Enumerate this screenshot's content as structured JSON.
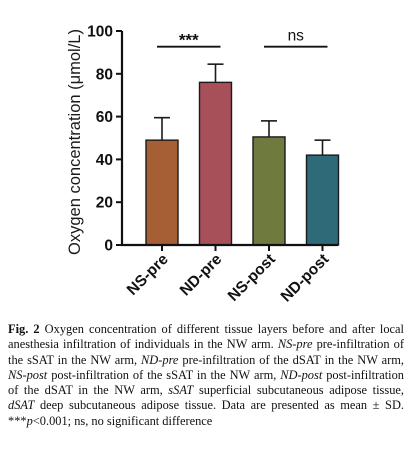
{
  "chart_data": {
    "type": "bar",
    "categories": [
      "NS-pre",
      "ND-pre",
      "NS-post",
      "ND-post"
    ],
    "values": [
      49,
      76,
      50.5,
      42
    ],
    "errors": [
      10.5,
      8.5,
      7.5,
      7
    ],
    "colors": [
      "#a65e35",
      "#a8505a",
      "#6f7b3e",
      "#2e6a78"
    ],
    "xlabel": "",
    "ylabel": "Oxygen concentration (μmol/L)",
    "ylim": [
      0,
      100
    ],
    "yticks": [
      "0",
      "20",
      "40",
      "60",
      "80",
      "100"
    ],
    "grid": false,
    "annotations": [
      {
        "label": "***",
        "from": "NS-pre",
        "to": "ND-pre",
        "y": 95
      },
      {
        "label": "ns",
        "from": "NS-post",
        "to": "ND-post",
        "y": 95
      }
    ]
  },
  "caption": {
    "label": "Fig. 2",
    "parts": [
      {
        "t": " Oxygen concentration of different tissue layers before and after local anesthesia infiltration of individuals in the NW arm. ",
        "i": false
      },
      {
        "t": "NS-pre",
        "i": true
      },
      {
        "t": " pre-infiltration of the sSAT in the NW arm, ",
        "i": false
      },
      {
        "t": "ND-pre",
        "i": true
      },
      {
        "t": " pre-infiltration of the dSAT in the NW arm, ",
        "i": false
      },
      {
        "t": "NS-post",
        "i": true
      },
      {
        "t": " post-infiltration of the sSAT in the NW arm, ",
        "i": false
      },
      {
        "t": "ND-post",
        "i": true
      },
      {
        "t": " post-infiltration of the dSAT in the NW arm, ",
        "i": false
      },
      {
        "t": "sSAT",
        "i": true
      },
      {
        "t": " superficial subcutaneous adipose tissue, ",
        "i": false
      },
      {
        "t": "dSAT",
        "i": true
      },
      {
        "t": " deep subcutaneous adipose tissue. Data are presented as mean ± SD. ***",
        "i": false
      },
      {
        "t": "p",
        "i": true
      },
      {
        "t": "<0.001; ns, no significant difference",
        "i": false
      }
    ]
  }
}
